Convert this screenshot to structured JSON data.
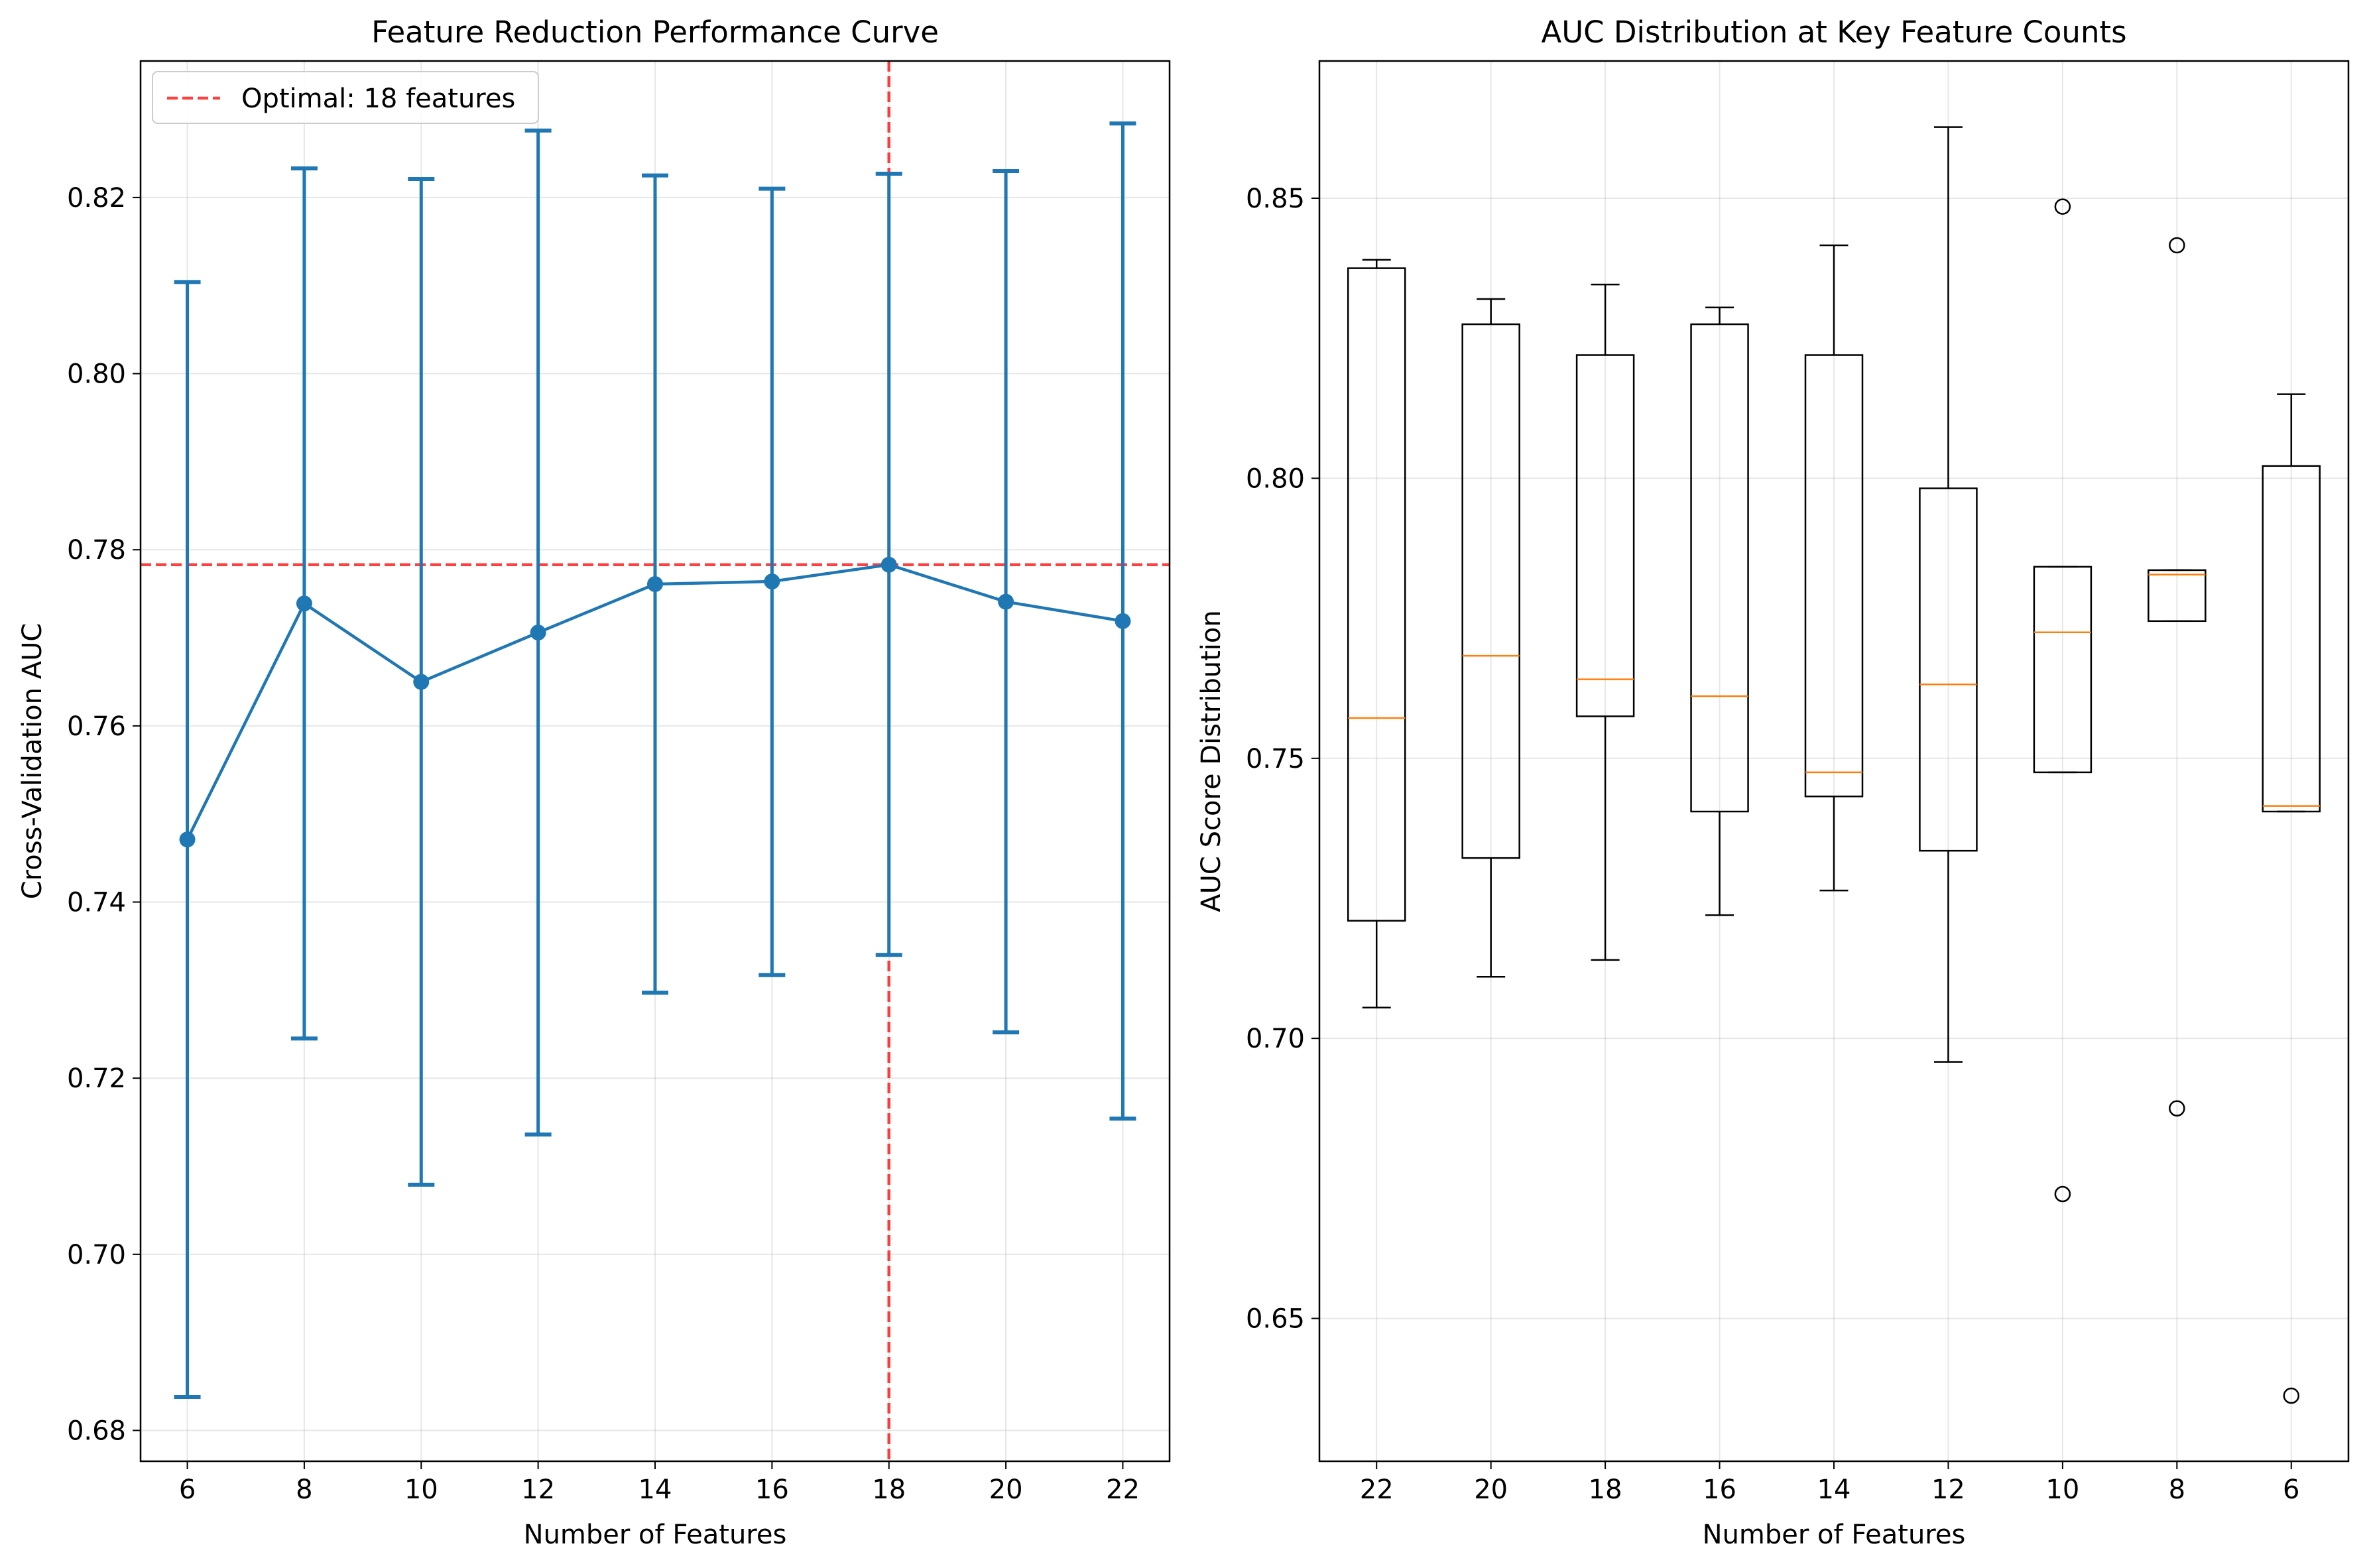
{
  "chart_data": [
    {
      "type": "line",
      "title": "Feature Reduction Performance Curve",
      "xlabel": "Number of Features",
      "ylabel": "Cross-Validation AUC",
      "xlim": [
        5.2,
        22.8
      ],
      "ylim": [
        0.6765,
        0.8355
      ],
      "x_ticks": [
        6,
        8,
        10,
        12,
        14,
        16,
        18,
        20,
        22
      ],
      "y_ticks": [
        0.68,
        0.7,
        0.72,
        0.74,
        0.76,
        0.78,
        0.8,
        0.82
      ],
      "grid": true,
      "series": [
        {
          "x": [
            6,
            8,
            10,
            12,
            14,
            16,
            18,
            20,
            22
          ],
          "y": [
            0.7471,
            0.7739,
            0.765,
            0.7706,
            0.7761,
            0.7764,
            0.7783,
            0.7741,
            0.7719
          ],
          "yerr_low": [
            0.6838,
            0.7245,
            0.7079,
            0.7136,
            0.7297,
            0.7317,
            0.734,
            0.7252,
            0.7154
          ],
          "yerr_high": [
            0.8104,
            0.8233,
            0.8221,
            0.8276,
            0.8225,
            0.821,
            0.8227,
            0.823,
            0.8284
          ],
          "color": "#1f77b4"
        }
      ],
      "reference_lines": {
        "hline_y": 0.7783,
        "vline_x": 18,
        "color": "#ff0000"
      },
      "legend": {
        "position": "top-left",
        "entries": [
          "Optimal: 18 features"
        ]
      }
    },
    {
      "type": "box",
      "title": "AUC Distribution at Key Feature Counts",
      "xlabel": "Number of Features",
      "ylabel": "AUC Score Distribution",
      "ylim": [
        0.6245,
        0.8745
      ],
      "y_ticks": [
        0.65,
        0.7,
        0.75,
        0.8,
        0.85
      ],
      "grid": true,
      "categories": [
        "22",
        "20",
        "18",
        "16",
        "14",
        "12",
        "10",
        "8",
        "6"
      ],
      "boxes": [
        {
          "whislo": 0.7055,
          "q1": 0.721,
          "med": 0.7572,
          "q3": 0.8375,
          "whishi": 0.839,
          "fliers": []
        },
        {
          "whislo": 0.711,
          "q1": 0.7322,
          "med": 0.7683,
          "q3": 0.8275,
          "whishi": 0.832,
          "fliers": []
        },
        {
          "whislo": 0.714,
          "q1": 0.7575,
          "med": 0.7641,
          "q3": 0.822,
          "whishi": 0.8346,
          "fliers": []
        },
        {
          "whislo": 0.722,
          "q1": 0.7405,
          "med": 0.7611,
          "q3": 0.8275,
          "whishi": 0.8305,
          "fliers": []
        },
        {
          "whislo": 0.7264,
          "q1": 0.7432,
          "med": 0.7475,
          "q3": 0.822,
          "whishi": 0.8416,
          "fliers": []
        },
        {
          "whislo": 0.6958,
          "q1": 0.7335,
          "med": 0.7632,
          "q3": 0.7982,
          "whishi": 0.8627,
          "fliers": []
        },
        {
          "whislo": 0.7475,
          "q1": 0.7475,
          "med": 0.7725,
          "q3": 0.7842,
          "whishi": 0.7842,
          "fliers": [
            0.8485,
            0.6722
          ]
        },
        {
          "whislo": 0.7745,
          "q1": 0.7745,
          "med": 0.7828,
          "q3": 0.7836,
          "whishi": 0.7836,
          "fliers": [
            0.8416,
            0.6875
          ]
        },
        {
          "whislo": 0.7405,
          "q1": 0.7405,
          "med": 0.7415,
          "q3": 0.8022,
          "whishi": 0.815,
          "fliers": [
            0.6362
          ]
        }
      ],
      "box_color": "#000000",
      "median_color": "#ff7f0e"
    }
  ]
}
